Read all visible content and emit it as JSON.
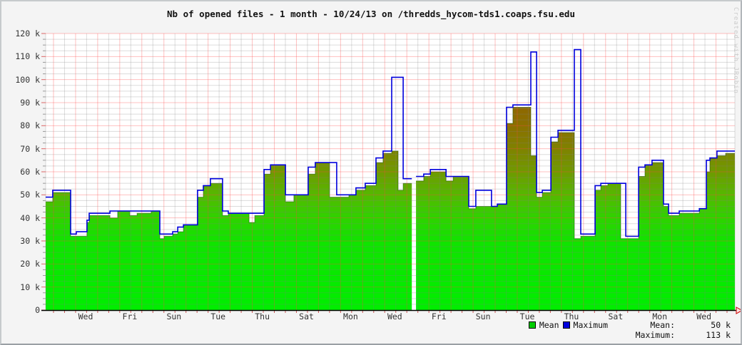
{
  "frame": {
    "title": "Nb of opened files - 1 month - 10/24/13 on /thredds_hycom-tds1.coaps.fsu.edu",
    "watermark": "Created with JRobin"
  },
  "legend": {
    "mean_label": "Mean",
    "maximum_label": "Maximum",
    "mean_summary_label": "Mean:",
    "mean_summary_value": "50 k",
    "maximum_summary_label": "Maximum:",
    "maximum_summary_value": "113 k"
  },
  "colors": {
    "background": "#f4f4f4",
    "plot_background": "#ffffff",
    "grid_minor": "rgba(130,130,130,0.28)",
    "grid_major": "rgba(255,70,70,0.34)",
    "axis": "#000000",
    "left_tick": "#999999",
    "left_tick_major": "#dd6666",
    "bottom_tick": "#cc5555",
    "mean_edge": "rgba(30,80,0,0.55)",
    "max_line": "#0000dd",
    "legend_mean_swatch": "#00cc00",
    "legend_max_swatch": "#0000dd",
    "arrow_fill": "#ffdddd",
    "arrow_stroke": "#cc0000",
    "area_gradient": [
      [
        "0.000",
        "#7d5500"
      ],
      [
        "0.250",
        "#8f6600"
      ],
      [
        "0.333",
        "#8a7000"
      ],
      [
        "0.417",
        "#7f8200"
      ],
      [
        "0.500",
        "#6f9a00"
      ],
      [
        "0.583",
        "#55b800"
      ],
      [
        "0.667",
        "#2fd200"
      ],
      [
        "0.750",
        "#11e300"
      ],
      [
        "1.000",
        "#00ee00"
      ]
    ]
  },
  "chart_data": {
    "type": "area",
    "title": "Nb of opened files - 1 month - 10/24/13 on /thredds_hycom-tds1.coaps.fsu.edu",
    "x_axis": {
      "unit": "days (1 month window)",
      "span_days": 31.21,
      "tick_labels": [
        "Wed",
        "Fri",
        "Sun",
        "Tue",
        "Thu",
        "Sat",
        "Mon",
        "Wed",
        "Fri",
        "Sun",
        "Tue",
        "Thu",
        "Sat",
        "Mon",
        "Wed"
      ],
      "label_start_day": 1.81,
      "label_step_days": 2,
      "day_grid_phase": 0.355,
      "minor_grid_days": 0.5
    },
    "y_axis": {
      "min_k": 0,
      "max_k": 120,
      "major_step_k": 10,
      "minor_step_k": 2.5,
      "tick_labels": [
        "0",
        "10 k",
        "20 k",
        "30 k",
        "40 k",
        "50 k",
        "60 k",
        "70 k",
        "80 k",
        "90 k",
        "100 k",
        "110 k",
        "120 k"
      ]
    },
    "grid": "minor gray + major light-red, drawn over area",
    "legend_position": "bottom-right",
    "series": [
      {
        "name": "Mean",
        "style": "area-gradient-green-to-brown",
        "summary": "50 k"
      },
      {
        "name": "Maximum",
        "style": "step-line",
        "color": "#0000dd",
        "summary": "113 k"
      }
    ],
    "steps_format": "[day_start, day_end, mean_k, max_k] ; null = missing data gap",
    "steps": [
      [
        0.0,
        0.32,
        47,
        49
      ],
      [
        0.32,
        1.13,
        51,
        52
      ],
      [
        1.13,
        1.39,
        32,
        33
      ],
      [
        1.39,
        1.87,
        32,
        34
      ],
      [
        1.87,
        1.97,
        38,
        39
      ],
      [
        1.97,
        2.91,
        41,
        42
      ],
      [
        2.91,
        3.26,
        40,
        43
      ],
      [
        3.26,
        3.81,
        43,
        43
      ],
      [
        3.81,
        4.14,
        41,
        43
      ],
      [
        4.14,
        4.78,
        42,
        43
      ],
      [
        4.78,
        5.17,
        43,
        43
      ],
      [
        5.17,
        5.36,
        31,
        33
      ],
      [
        5.36,
        5.75,
        32,
        33
      ],
      [
        5.75,
        5.98,
        33,
        34
      ],
      [
        5.98,
        6.24,
        34,
        36
      ],
      [
        6.24,
        6.88,
        37,
        37
      ],
      [
        6.88,
        7.14,
        49,
        52
      ],
      [
        7.14,
        7.46,
        54,
        54
      ],
      [
        7.46,
        8.01,
        55,
        57
      ],
      [
        8.01,
        8.27,
        41,
        43
      ],
      [
        8.27,
        9.21,
        42,
        42
      ],
      [
        9.21,
        9.47,
        38,
        42
      ],
      [
        9.47,
        9.89,
        41,
        42
      ],
      [
        9.89,
        10.18,
        59,
        61
      ],
      [
        10.18,
        10.86,
        63,
        63
      ],
      [
        10.86,
        11.24,
        47,
        50
      ],
      [
        11.24,
        11.89,
        50,
        50
      ],
      [
        11.89,
        12.21,
        59,
        62
      ],
      [
        12.21,
        12.86,
        64,
        64
      ],
      [
        12.86,
        13.18,
        49,
        64
      ],
      [
        13.18,
        13.73,
        49,
        50
      ],
      [
        13.73,
        14.05,
        50,
        50
      ],
      [
        14.05,
        14.47,
        52,
        53
      ],
      [
        14.47,
        14.96,
        54,
        55
      ],
      [
        14.96,
        15.28,
        64,
        66
      ],
      [
        15.28,
        15.67,
        68,
        69
      ],
      [
        15.67,
        15.96,
        69,
        101
      ],
      [
        15.96,
        16.19,
        52,
        101
      ],
      [
        16.19,
        16.58,
        55,
        57
      ],
      [
        16.58,
        16.77,
        null,
        null
      ],
      [
        16.77,
        17.12,
        56,
        58
      ],
      [
        17.12,
        17.42,
        58,
        59
      ],
      [
        17.42,
        18.13,
        60,
        61
      ],
      [
        18.13,
        18.45,
        56,
        58
      ],
      [
        18.45,
        19.16,
        58,
        58
      ],
      [
        19.16,
        19.48,
        44,
        45
      ],
      [
        19.48,
        20.19,
        45,
        52
      ],
      [
        20.19,
        20.45,
        45,
        45
      ],
      [
        20.45,
        20.87,
        46,
        46
      ],
      [
        20.87,
        21.16,
        81,
        88
      ],
      [
        21.16,
        21.97,
        88,
        89
      ],
      [
        21.97,
        22.23,
        67,
        112
      ],
      [
        22.23,
        22.49,
        49,
        51
      ],
      [
        22.49,
        22.88,
        51,
        52
      ],
      [
        22.88,
        23.2,
        73,
        75
      ],
      [
        23.2,
        23.94,
        77,
        78
      ],
      [
        23.94,
        24.23,
        31,
        113
      ],
      [
        24.23,
        24.88,
        32,
        33
      ],
      [
        24.88,
        25.14,
        52,
        54
      ],
      [
        25.14,
        25.46,
        54,
        55
      ],
      [
        25.46,
        26.04,
        55,
        55
      ],
      [
        26.04,
        26.27,
        31,
        55
      ],
      [
        26.27,
        26.85,
        31,
        32
      ],
      [
        26.85,
        27.14,
        58,
        62
      ],
      [
        27.14,
        27.46,
        63,
        63
      ],
      [
        27.46,
        27.98,
        64,
        65
      ],
      [
        27.98,
        28.21,
        45,
        46
      ],
      [
        28.21,
        28.69,
        41,
        42
      ],
      [
        28.69,
        29.6,
        42,
        43
      ],
      [
        29.6,
        29.92,
        44,
        44
      ],
      [
        29.92,
        30.08,
        60,
        65
      ],
      [
        30.08,
        30.4,
        66,
        66
      ],
      [
        30.4,
        30.79,
        67,
        69
      ],
      [
        30.79,
        31.21,
        68,
        69
      ]
    ]
  }
}
